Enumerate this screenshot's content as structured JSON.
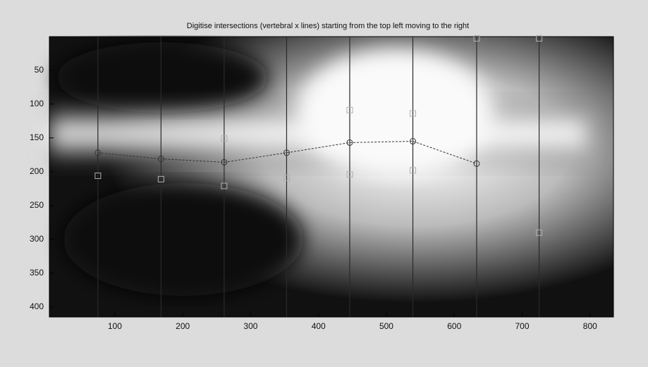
{
  "chart_data": {
    "type": "line",
    "title": "Digitise intersections (vertebral x lines) starting from the top left moving to the right",
    "xlim": [
      3.5,
      834.5
    ],
    "ylim": [
      0.5,
      414.5
    ],
    "y_reverse": true,
    "xticks": [
      100,
      200,
      300,
      400,
      500,
      600,
      700,
      800
    ],
    "yticks": [
      50,
      100,
      150,
      200,
      250,
      300,
      350,
      400
    ],
    "vlines": {
      "x": [
        75,
        168,
        261,
        353,
        446,
        539,
        633,
        725
      ],
      "color": "#2a2a2a"
    },
    "x": [
      75,
      168,
      261,
      353,
      446,
      539,
      633
    ],
    "series": [
      {
        "color": "#333333",
        "values": [
          172,
          181,
          186,
          172,
          157,
          155,
          188
        ]
      }
    ],
    "squares": {
      "x": [
        633,
        725,
        261,
        446,
        539,
        75,
        168,
        261,
        353,
        446,
        539,
        725
      ],
      "y": [
        3,
        3,
        151,
        109,
        114,
        206,
        211,
        221,
        209,
        204,
        198,
        290
      ],
      "color": "#b0b0b0"
    }
  }
}
